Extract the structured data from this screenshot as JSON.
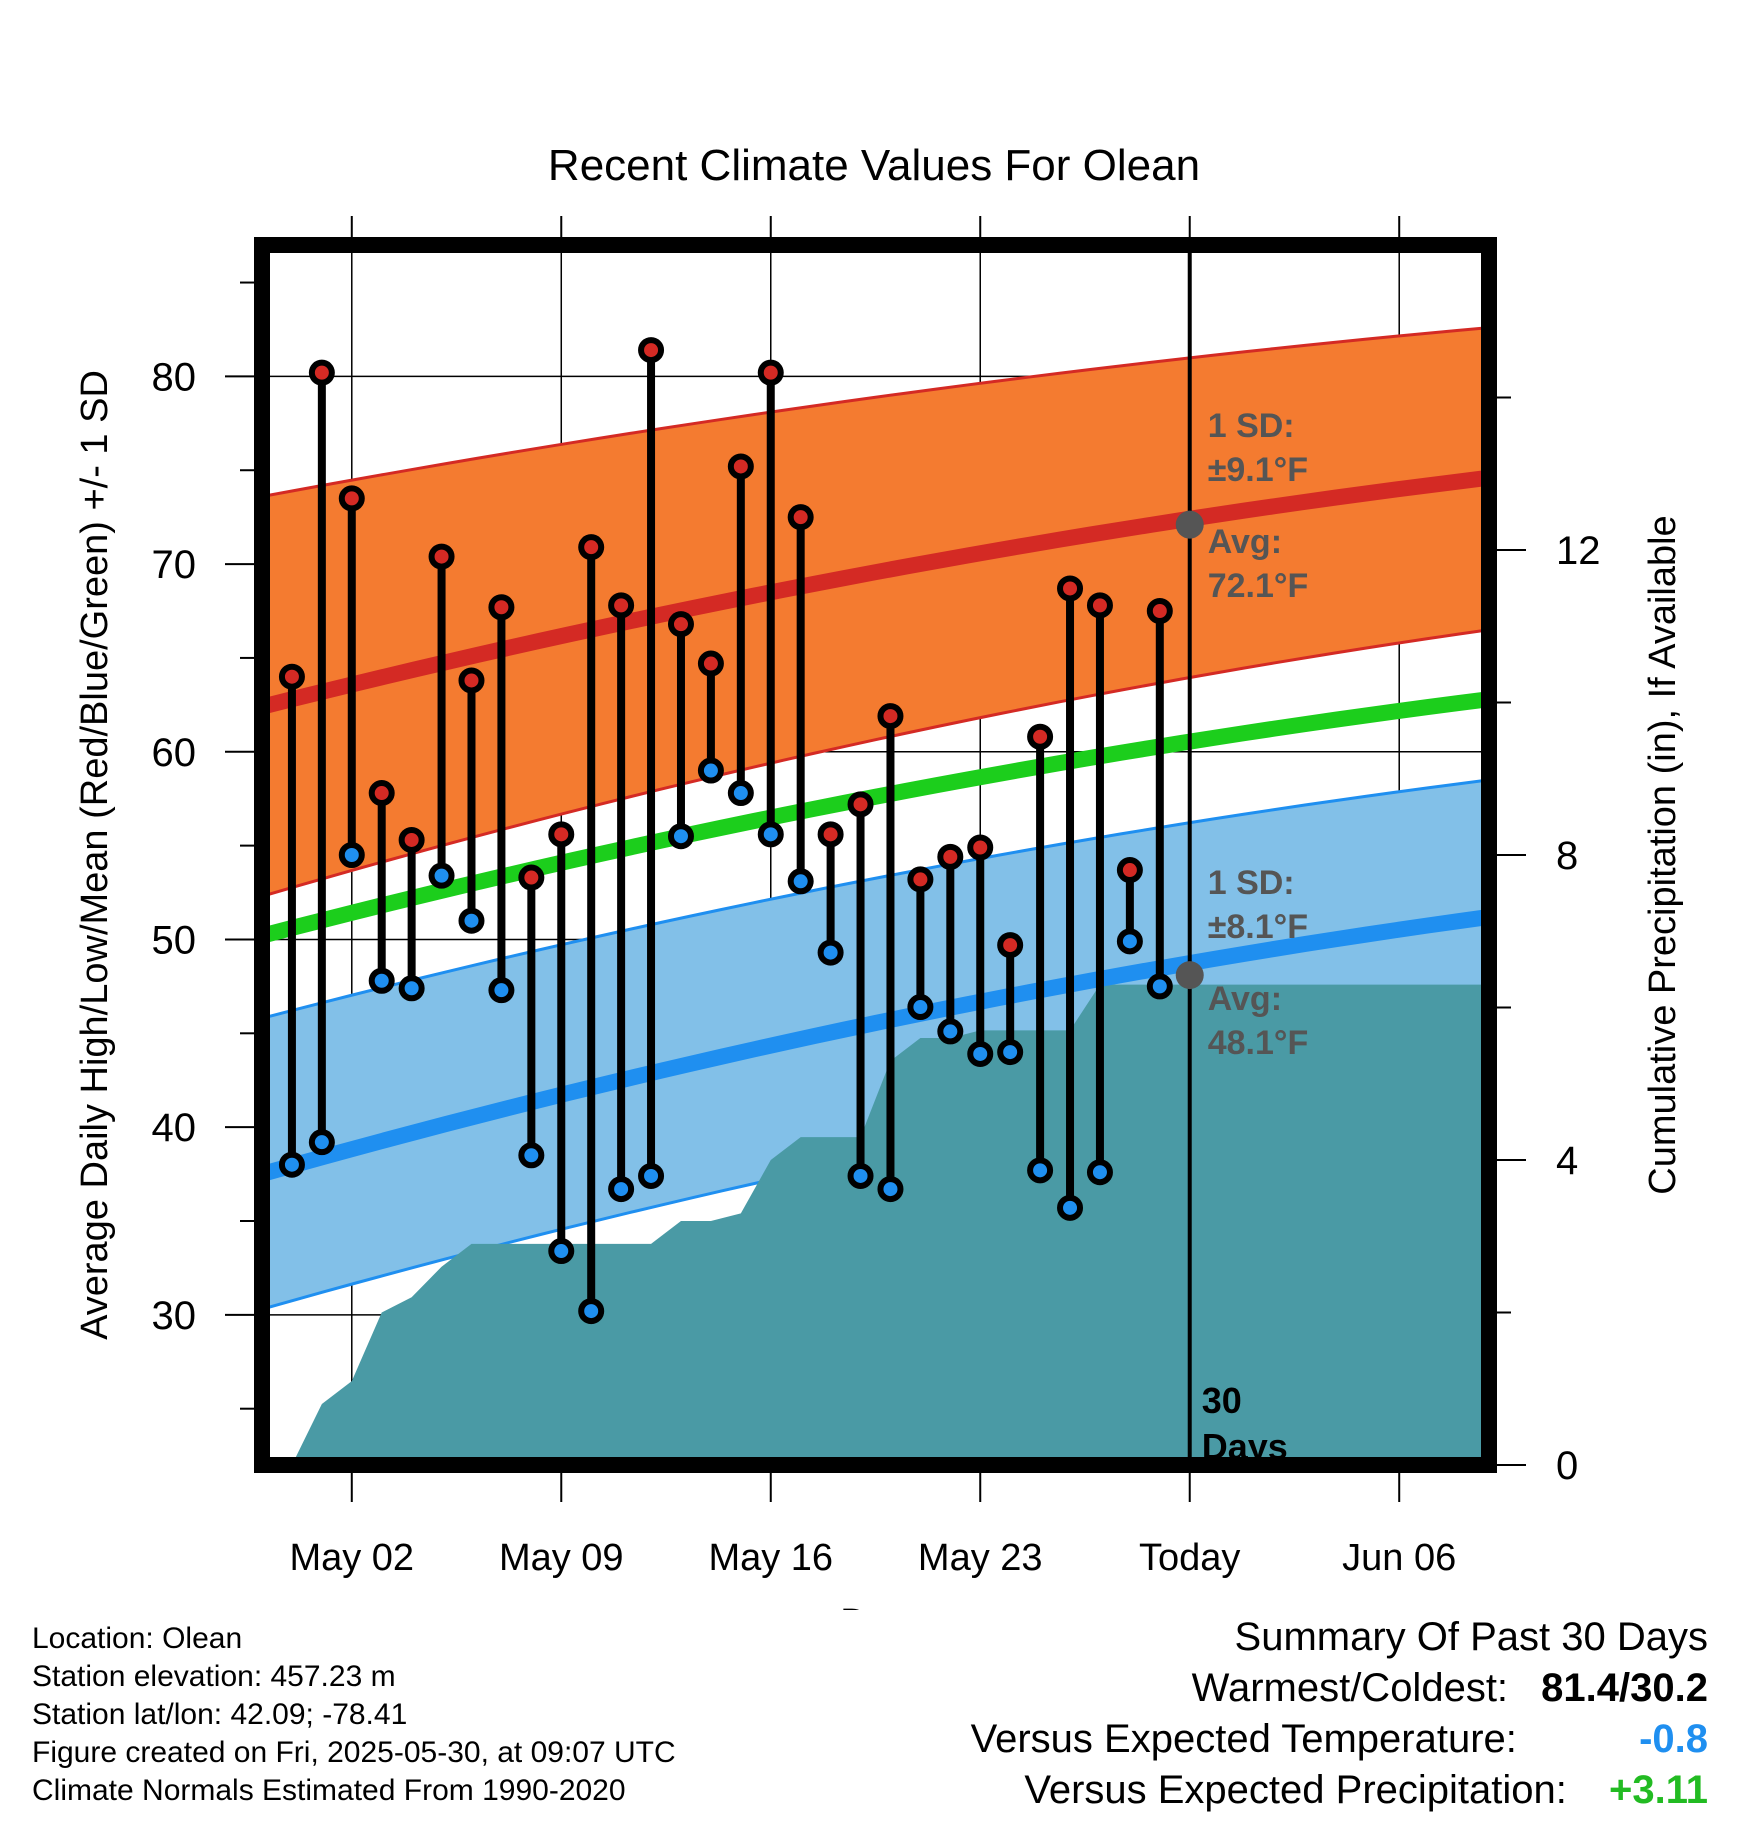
{
  "chart_data": {
    "type": "line",
    "title": "Recent Climate Values For Olean",
    "xlabel": "Day",
    "ylabel": "Average Daily High/Low/Mean (Red/Blue/Green) +/- 1 SD",
    "y2label": "Cumulative Precipitation (in), If Available",
    "x_tick_labels": [
      "May 02",
      "May 09",
      "May 16",
      "May 23",
      "Today",
      "Jun 06"
    ],
    "x_range_days": [
      "2025-04-29",
      "2025-06-09"
    ],
    "ylim": [
      22,
      87
    ],
    "yticks": [
      30,
      40,
      50,
      60,
      70,
      80
    ],
    "y2lim": [
      0,
      16
    ],
    "y2ticks": [
      0,
      4,
      8,
      12
    ],
    "grid": true,
    "daily": {
      "dates": [
        "2025-04-30",
        "2025-05-01",
        "2025-05-02",
        "2025-05-03",
        "2025-05-04",
        "2025-05-05",
        "2025-05-06",
        "2025-05-07",
        "2025-05-08",
        "2025-05-09",
        "2025-05-10",
        "2025-05-11",
        "2025-05-12",
        "2025-05-13",
        "2025-05-14",
        "2025-05-15",
        "2025-05-16",
        "2025-05-17",
        "2025-05-18",
        "2025-05-19",
        "2025-05-20",
        "2025-05-21",
        "2025-05-22",
        "2025-05-23",
        "2025-05-24",
        "2025-05-25",
        "2025-05-26",
        "2025-05-27",
        "2025-05-28",
        "2025-05-29"
      ],
      "high": [
        64.0,
        80.2,
        73.5,
        57.8,
        55.3,
        70.4,
        63.8,
        67.7,
        53.3,
        55.6,
        70.9,
        67.8,
        81.4,
        66.8,
        64.7,
        75.2,
        80.2,
        72.5,
        55.6,
        57.2,
        61.9,
        53.2,
        54.4,
        54.9,
        49.7,
        60.8,
        68.7,
        67.8,
        53.7,
        67.5
      ],
      "low": [
        38.0,
        39.2,
        54.5,
        47.8,
        47.4,
        53.4,
        51.0,
        47.3,
        38.5,
        33.4,
        30.2,
        36.7,
        37.4,
        55.5,
        59.0,
        57.8,
        55.6,
        53.1,
        49.3,
        37.4,
        36.7,
        46.4,
        45.1,
        43.9,
        44.0,
        37.7,
        35.7,
        37.6,
        49.9,
        47.5
      ]
    },
    "normals": {
      "dates": [
        "2025-04-29",
        "2025-06-09"
      ],
      "avg_high": [
        62.4,
        74.6
      ],
      "avg_high_sd_band": [
        [
          52.3,
          73.6
        ],
        [
          66.5,
          82.6
        ]
      ],
      "avg_mean": [
        50.2,
        62.8
      ],
      "avg_low": [
        37.5,
        51.2
      ],
      "avg_low_sd_band": [
        [
          30.3,
          45.8
        ],
        [
          44.1,
          58.5
        ]
      ]
    },
    "precip_cumulative": {
      "dates": [
        "2025-04-29",
        "2025-04-30",
        "2025-05-01",
        "2025-05-02",
        "2025-05-03",
        "2025-05-04",
        "2025-05-05",
        "2025-05-06",
        "2025-05-07",
        "2025-05-08",
        "2025-05-09",
        "2025-05-10",
        "2025-05-11",
        "2025-05-12",
        "2025-05-13",
        "2025-05-14",
        "2025-05-15",
        "2025-05-16",
        "2025-05-17",
        "2025-05-18",
        "2025-05-19",
        "2025-05-20",
        "2025-05-21",
        "2025-05-22",
        "2025-05-23",
        "2025-05-24",
        "2025-05-25",
        "2025-05-26",
        "2025-05-27",
        "2025-05-28",
        "2025-05-29",
        "2025-06-09"
      ],
      "values": [
        0.0,
        0.0,
        0.8,
        1.1,
        2.0,
        2.2,
        2.6,
        2.9,
        2.9,
        2.9,
        2.9,
        2.9,
        2.9,
        2.9,
        3.2,
        3.2,
        3.3,
        4.0,
        4.3,
        4.3,
        4.3,
        5.3,
        5.6,
        5.6,
        5.7,
        5.7,
        5.7,
        5.7,
        6.3,
        6.3,
        6.3,
        6.3
      ]
    },
    "annotations": {
      "high_sd": {
        "line1": "1 SD:",
        "line2": "±9.1°F"
      },
      "high_avg": {
        "line1": "Avg:",
        "line2": "72.1°F",
        "value": 72.1
      },
      "low_sd": {
        "line1": "1 SD:",
        "line2": "±8.1°F"
      },
      "low_avg": {
        "line1": "Avg:",
        "line2": "48.1°F",
        "value": 48.1
      },
      "days": {
        "line1": "30",
        "line2": "Days"
      },
      "today_date": "2025-05-30"
    },
    "colors": {
      "high_band": "#f47b30",
      "high_line": "#d42a24",
      "mean_line": "#1cce1c",
      "low_band": "#82c0e8",
      "low_line": "#1f8ff0",
      "precip": "#4a9aa5",
      "high_dot": "#d42a24",
      "low_dot": "#1f8ff0",
      "annotation": "#555555"
    }
  },
  "footer": {
    "location": "Location: Olean",
    "elevation": "Station elevation: 457.23 m",
    "latlon": "Station lat/lon: 42.09; -78.41",
    "created": "Figure created on Fri, 2025-05-30, at 09:07 UTC",
    "normals": "Climate Normals Estimated From 1990-2020"
  },
  "summary": {
    "title": "Summary Of Past 30 Days",
    "warmest_label": "Warmest/Coldest:",
    "warmest_value": "81.4/30.2",
    "temp_label": "Versus Expected Temperature:",
    "temp_value": "-0.8",
    "temp_color": "#1f8ff0",
    "precip_label": "Versus Expected Precipitation:",
    "precip_value": "+3.11",
    "precip_color": "#22bb22"
  }
}
